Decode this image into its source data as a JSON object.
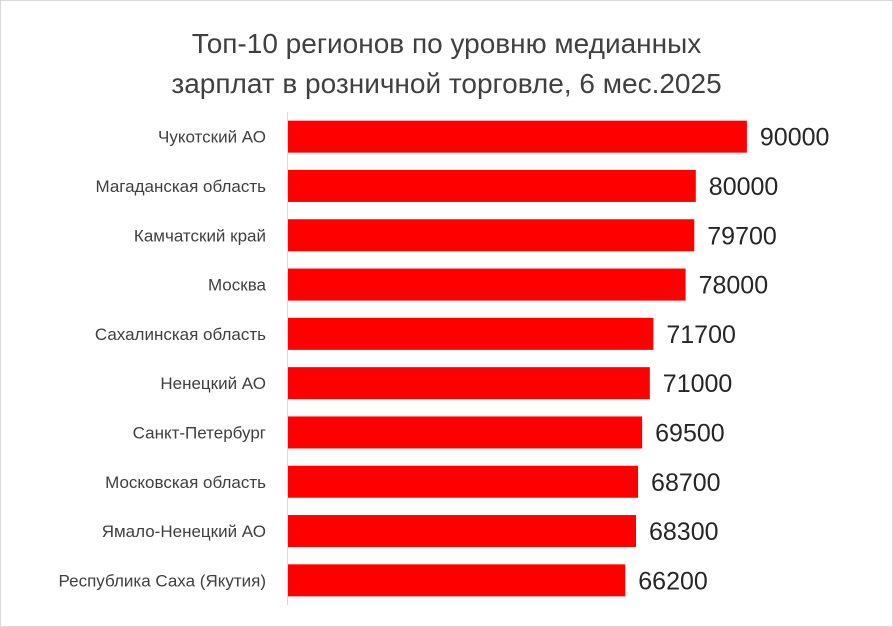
{
  "chart_data": {
    "type": "bar",
    "orientation": "horizontal",
    "title_lines": [
      "Топ-10 регионов по уровню медианных",
      "зарплат в розничной торговле, 6 мес.2025"
    ],
    "categories": [
      "Чукотский АО",
      "Магаданская область",
      "Камчатский край",
      "Москва",
      "Сахалинская область",
      "Ненецкий АО",
      "Санкт-Петербург",
      "Московская область",
      "Ямало-Ненецкий АО",
      "Республика Саха (Якутия)"
    ],
    "values": [
      90000,
      80000,
      79700,
      78000,
      71700,
      71000,
      69500,
      68700,
      68300,
      66200
    ],
    "data_labels": [
      "90000",
      "80000",
      "79700",
      "78000",
      "71700",
      "71000",
      "69500",
      "68700",
      "68300",
      "66200"
    ],
    "xlim": [
      0,
      100000
    ],
    "bar_color": "#ff0000",
    "grid": false,
    "legend": "none"
  }
}
